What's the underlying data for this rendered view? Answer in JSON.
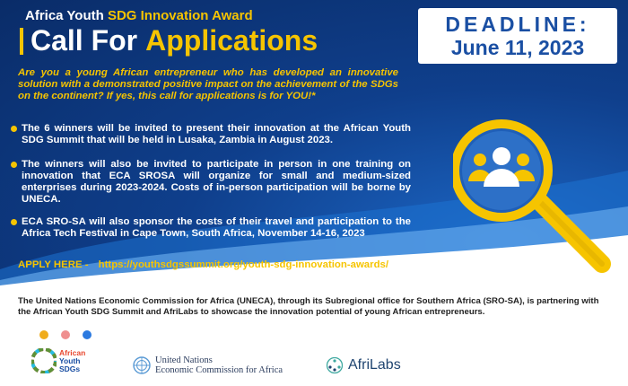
{
  "header": {
    "award_prefix": "Africa Youth ",
    "award_highlight": "SDG Innovation Award",
    "cfa_white": "Call For",
    "cfa_yellow": "Applications"
  },
  "deadline": {
    "label": "DEADLINE:",
    "date": "June 11, 2023"
  },
  "intro": "Are you a young African entrepreneur who has developed an innovative solution with a demonstrated positive impact on the achievement of the SDGs on the continent? If yes, this call for applications is for YOU!*",
  "bullets": [
    "The 6 winners will be invited to present their innovation at the African Youth SDG Summit that will be held in Lusaka, Zambia in August 2023.",
    "The winners will also be invited to participate in person in one training on innovation that ECA SROSA will organize for small and medium-sized enterprises during 2023-2024. Costs of in-person participation will be borne by UNECA.",
    "ECA SRO-SA will also sponsor the costs of their travel and participation to the Africa Tech Festival in Cape Town, South Africa, November 14-16, 2023"
  ],
  "apply": {
    "label": "APPLY HERE -",
    "link": "https://youthsdgssummit.org/youth-sdg-innovation-awards/"
  },
  "footer_text": "The United Nations Economic Commission for Africa (UNECA), through its Subregional office for Southern Africa (SRO-SA), is partnering with the African Youth SDG Summit and AfriLabs to showcase the innovation potential of young African entrepreneurs.",
  "logos": {
    "sdg_line1": "African",
    "sdg_line2": "Youth",
    "sdg_line3": "SDGs",
    "uneca_line1": "United Nations",
    "uneca_line2": "Economic Commission for Africa",
    "afrilabs": "AfriLabs"
  },
  "colors": {
    "accent_yellow": "#f6c400",
    "banner_blue": "#0f3f8c",
    "deadline_blue": "#1a4fa3",
    "dot_1": "#f0ac1c",
    "dot_2": "#ef8f8f",
    "dot_3": "#2b7ae0"
  },
  "icons": {
    "magnifier": "magnifying-glass-people-icon",
    "bullet": "yellow-dot-bullet-icon"
  }
}
